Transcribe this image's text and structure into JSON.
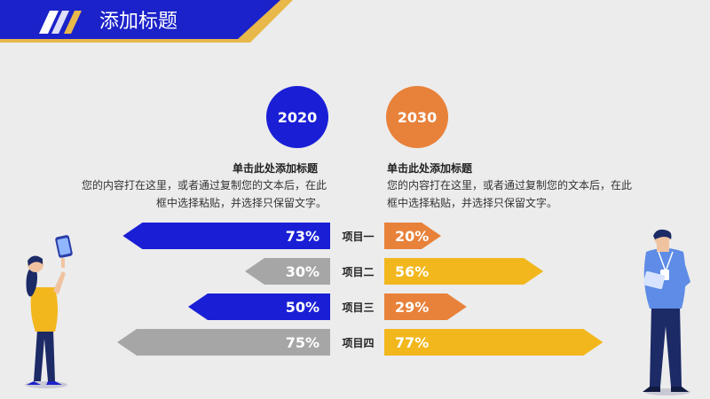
{
  "header": {
    "title": "添加标题"
  },
  "left_block": {
    "year": "2020",
    "heading": "单击此处添加标题",
    "desc_line1": "您的内容打在这里，或者通过复制您的文本后，在此",
    "desc_line2": "框中选择粘贴，并选择只保留文字。"
  },
  "right_block": {
    "year": "2030",
    "heading": "单击此处添加标题",
    "desc_line1": "您的内容打在这里，或者通过复制您的文本后，在此",
    "desc_line2": "框中选择粘贴，并选择只保留文字。"
  },
  "colors": {
    "blue": "#1a1fd6",
    "gray": "#a6a6a6",
    "orange": "#e8813a",
    "yellow": "#f2b71c",
    "header_blue": "#1b22c9",
    "header_gold": "#e9b84a"
  },
  "chart_data": {
    "type": "bar",
    "categories": [
      "项目一",
      "项目二",
      "项目三",
      "项目四"
    ],
    "series": [
      {
        "name": "2020",
        "values": [
          73,
          30,
          50,
          75
        ],
        "labels": [
          "73%",
          "30%",
          "50%",
          "75%"
        ],
        "colors": [
          "#1a1fd6",
          "#a6a6a6",
          "#1a1fd6",
          "#a6a6a6"
        ]
      },
      {
        "name": "2030",
        "values": [
          20,
          56,
          29,
          77
        ],
        "labels": [
          "20%",
          "56%",
          "29%",
          "77%"
        ],
        "colors": [
          "#e8813a",
          "#f2b71c",
          "#e8813a",
          "#f2b71c"
        ]
      }
    ],
    "xlim": [
      0,
      100
    ],
    "grid": false
  }
}
